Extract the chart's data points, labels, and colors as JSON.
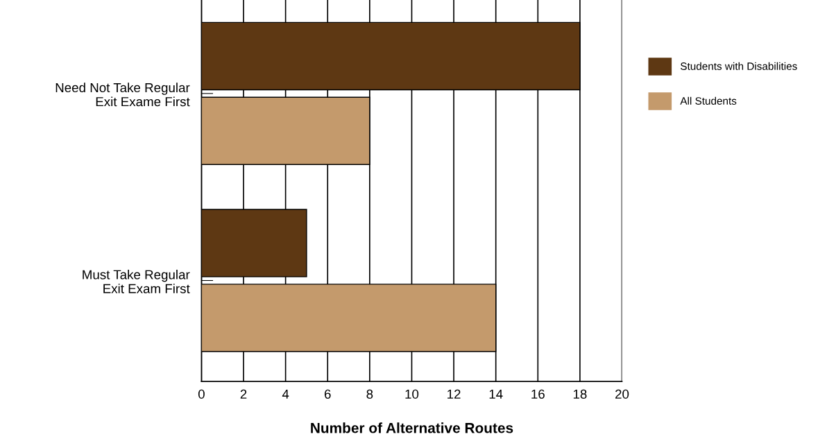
{
  "chart_data": {
    "type": "bar",
    "orientation": "horizontal",
    "xlabel": "Number of Alternative Routes",
    "categories": [
      "Need Not Take Regular\nExit Exame First",
      "Must Take Regular\nExit Exam First"
    ],
    "series": [
      {
        "name": "Students with Disabilities",
        "color": "#5e3813",
        "values": [
          18,
          5
        ]
      },
      {
        "name": "All Students",
        "color": "#c49a6c",
        "values": [
          8,
          14
        ]
      }
    ],
    "xlim": [
      0,
      20
    ],
    "xticks": [
      0,
      2,
      4,
      6,
      8,
      10,
      12,
      14,
      16,
      18,
      20
    ],
    "grid": "x",
    "legend": "right"
  }
}
